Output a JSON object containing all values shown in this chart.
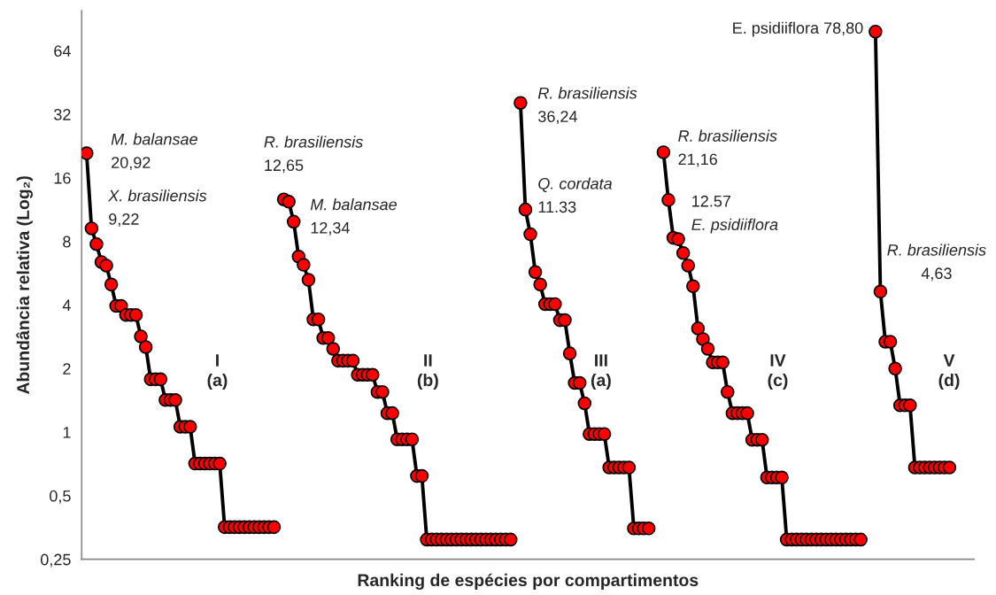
{
  "chart_data": {
    "type": "line",
    "xlabel": "Ranking de espécies por compartimentos",
    "ylabel": "Abundância relativa (Log₂)",
    "log": "y",
    "ylim": [
      0.25,
      99
    ],
    "yticks": [
      {
        "value": 0.25,
        "label": "0,25"
      },
      {
        "value": 0.5,
        "label": "0,5"
      },
      1,
      2,
      4,
      8,
      16,
      32,
      64
    ],
    "categories": [
      null,
      null,
      null,
      null,
      null,
      null,
      null,
      null,
      null,
      null,
      null,
      null,
      null,
      null,
      null,
      null,
      null,
      null,
      null,
      null,
      null,
      null,
      null,
      null,
      null,
      null,
      null,
      null,
      null,
      null,
      null,
      null,
      null,
      null,
      null,
      null,
      null,
      null,
      null,
      null,
      null,
      null,
      null,
      null,
      null,
      null,
      null,
      null,
      null,
      null,
      null,
      null,
      null,
      null,
      null,
      null,
      null,
      null,
      null,
      null,
      null,
      null,
      null,
      null,
      null,
      null,
      null,
      null,
      null,
      null,
      null,
      null,
      null,
      null,
      null,
      null,
      null,
      null,
      null,
      null,
      null,
      null,
      null,
      null,
      null,
      null,
      null,
      null,
      null,
      null,
      null,
      null,
      null,
      null,
      null,
      null,
      null,
      null,
      null,
      null,
      null,
      null,
      null,
      null,
      null,
      null,
      null,
      null,
      null,
      null,
      null,
      null,
      null,
      null,
      null,
      null,
      null,
      null,
      null,
      null,
      null,
      null,
      null,
      null,
      null,
      null,
      null,
      null,
      null,
      null,
      null,
      null,
      null,
      null,
      null,
      null,
      null,
      null,
      null,
      null,
      null,
      null,
      null,
      null,
      null,
      null,
      null,
      null,
      null,
      null,
      null,
      null,
      null,
      null,
      null,
      null,
      null,
      null,
      null,
      null,
      null,
      null,
      null,
      null,
      null,
      null,
      null,
      null,
      null,
      null,
      null,
      null,
      null,
      null,
      null,
      null,
      null,
      null,
      null,
      null
    ],
    "grid": false,
    "marker": "circle",
    "line_style": "solid",
    "series": [
      {
        "color": "#ff0000",
        "values": [
          20.92,
          9.22,
          7.77,
          6.39,
          6.15,
          5.0,
          3.96,
          3.96,
          3.59,
          3.59,
          3.59,
          2.84,
          2.53,
          1.78,
          1.78,
          1.78,
          1.42,
          1.42,
          1.42,
          1.06,
          1.06,
          1.06,
          0.71,
          0.71,
          0.71,
          0.71,
          0.71,
          0.71,
          0.355,
          0.355,
          0.355,
          0.355,
          0.355,
          0.355,
          0.355,
          0.355,
          0.355,
          0.355,
          0.355,
          null,
          12.65,
          12.34,
          9.92,
          6.78,
          6.2,
          5.26,
          3.42,
          3.42,
          2.79,
          2.79,
          2.48,
          2.18,
          2.18,
          2.18,
          2.18,
          1.87,
          1.87,
          1.87,
          1.87,
          1.55,
          1.55,
          1.23,
          1.23,
          0.925,
          0.925,
          0.925,
          0.925,
          0.62,
          0.62,
          0.31,
          0.31,
          0.31,
          0.31,
          0.31,
          0.31,
          0.31,
          0.31,
          0.31,
          0.31,
          0.31,
          0.31,
          0.31,
          0.31,
          0.31,
          0.31,
          0.31,
          0.31,
          null,
          36.24,
          11.33,
          8.65,
          5.73,
          5.0,
          4.04,
          4.04,
          4.04,
          3.39,
          3.39,
          2.36,
          1.71,
          1.71,
          1.37,
          0.98,
          0.98,
          0.98,
          0.98,
          0.68,
          0.68,
          0.68,
          0.68,
          0.68,
          0.35,
          0.35,
          0.35,
          0.35,
          null,
          null,
          21.16,
          12.57,
          8.32,
          8.2,
          7.05,
          6.15,
          4.91,
          3.1,
          2.76,
          2.48,
          2.14,
          2.14,
          2.14,
          1.55,
          1.23,
          1.23,
          1.23,
          1.23,
          0.92,
          0.92,
          0.92,
          0.61,
          0.61,
          0.61,
          0.61,
          0.31,
          0.31,
          0.31,
          0.31,
          0.31,
          0.31,
          0.31,
          0.31,
          0.31,
          0.31,
          0.31,
          0.31,
          0.31,
          0.31,
          0.31,
          0.31,
          null,
          null,
          78.8,
          4.63,
          2.68,
          2.68,
          2.0,
          1.34,
          1.34,
          1.34,
          0.68,
          0.68,
          0.68,
          0.68,
          0.68,
          0.68,
          0.68,
          0.68,
          null,
          null,
          null,
          null
        ]
      }
    ],
    "annotations": [
      "M. balansae\n20,92",
      "X. brasiliensis\n9,22",
      "R. brasiliensis\n12,65",
      "M. balansae\n12,34",
      "R. brasiliensis\n36,24",
      "Q. cordata\n11.33",
      "R. brasiliensis\n21,16",
      "12.57\nE. psidiiflora",
      "E. psidiiflora 78,80",
      "R. brasiliensis\n4,63",
      "I\n(a)",
      "II\n(b)",
      "III\n(a)",
      "IV\n(c)",
      "V\n(d)"
    ]
  }
}
